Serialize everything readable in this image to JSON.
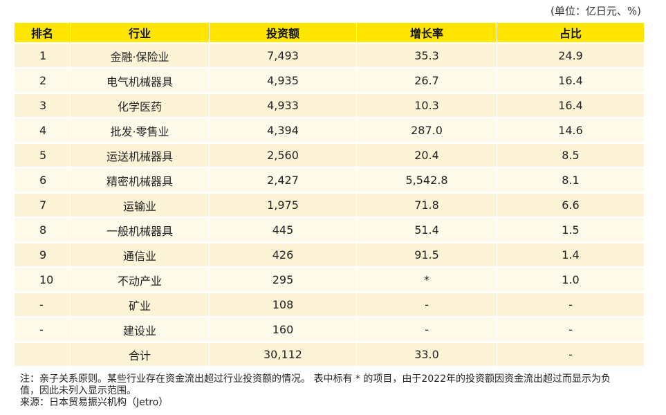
{
  "unit_label": "(单位：亿日元、%)",
  "table": {
    "headers": [
      "排名",
      "行业",
      "投资额",
      "增长率",
      "占比"
    ],
    "rows": [
      {
        "rank": "1",
        "industry": "金融·保险业",
        "amount": "7,493",
        "growth": "35.3",
        "share": "24.9"
      },
      {
        "rank": "2",
        "industry": "电气机械器具",
        "amount": "4,935",
        "growth": "26.7",
        "share": "16.4"
      },
      {
        "rank": "3",
        "industry": "化学医药",
        "amount": "4,933",
        "growth": "10.3",
        "share": "16.4"
      },
      {
        "rank": "4",
        "industry": "批发·零售业",
        "amount": "4,394",
        "growth": "287.0",
        "share": "14.6"
      },
      {
        "rank": "5",
        "industry": "运送机械器具",
        "amount": "2,560",
        "growth": "20.4",
        "share": "8.5"
      },
      {
        "rank": "6",
        "industry": "精密机械器具",
        "amount": "2,427",
        "growth": "5,542.8",
        "share": "8.1"
      },
      {
        "rank": "7",
        "industry": "运输业",
        "amount": "1,975",
        "growth": "71.8",
        "share": "6.6"
      },
      {
        "rank": "8",
        "industry": "一般机械器具",
        "amount": "445",
        "growth": "51.4",
        "share": "1.5"
      },
      {
        "rank": "9",
        "industry": "通信业",
        "amount": "426",
        "growth": "91.5",
        "share": "1.4"
      },
      {
        "rank": "10",
        "industry": "不动产业",
        "amount": "295",
        "growth": "*",
        "share": "1.0"
      },
      {
        "rank": "-",
        "industry": "矿业",
        "amount": "108",
        "growth": "-",
        "share": "-"
      },
      {
        "rank": "-",
        "industry": "建设业",
        "amount": "160",
        "growth": "-",
        "share": "-"
      },
      {
        "rank": "",
        "industry": "合计",
        "amount": "30,112",
        "growth": "33.0",
        "share": "-"
      }
    ]
  },
  "notes": {
    "note_line1": "注：亲子关系原则。某些行业存在资金流出超过行业投资额的情况。 表中标有 * 的项目，由于2022年的投资额因资金流出超过而显示为负",
    "note_line2": "值，因此未列入显示范围。",
    "source": "来源：日本贸易振兴机构（Jetro）"
  },
  "colors": {
    "header_bg": "#ffe600",
    "row_odd_bg": "#fdf3d7",
    "row_even_bg": "#fdfae9"
  }
}
